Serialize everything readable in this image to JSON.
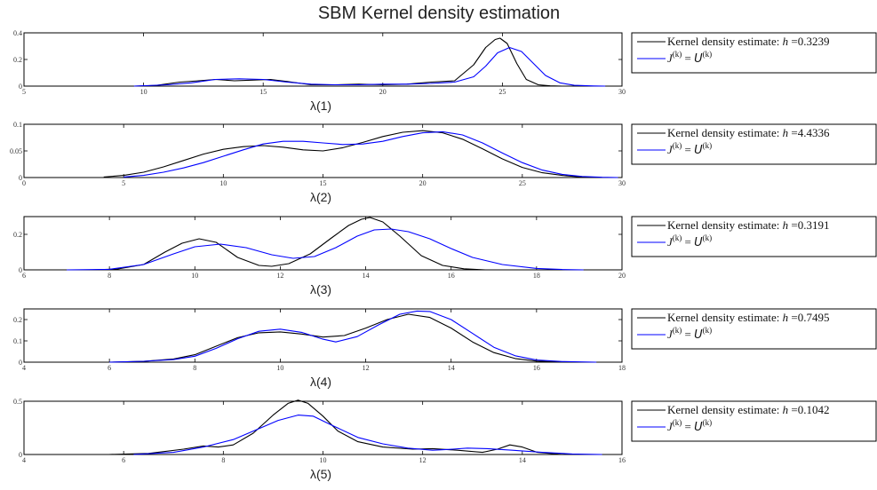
{
  "figure": {
    "title": "SBM Kernel density estimation"
  },
  "legend_labels": {
    "kde_prefix": "Kernel density estimate:",
    "h_symbol": "h",
    "equals": "=",
    "ref_lhs": "J",
    "ref_sup": "(k)",
    "ref_eq": "=",
    "ref_rhs": "U",
    "ref_rhs_sup": "(k)"
  },
  "colors": {
    "kde": "#000000",
    "reference": "#0000ff",
    "axis": "#000000"
  },
  "chart_data": [
    {
      "type": "line",
      "xlabel": "λ(1)",
      "xlim": [
        5,
        30
      ],
      "ylim": [
        0,
        0.4
      ],
      "xticks": [
        5,
        10,
        15,
        20,
        25,
        30
      ],
      "yticks": [
        0,
        0.2,
        0.4
      ],
      "ytick_labels": [
        "0",
        "0.2",
        "0.4"
      ],
      "bandwidth": "0.3239",
      "series": [
        {
          "name": "Kernel density estimate",
          "x": [
            9.6,
            10.5,
            11.5,
            12.3,
            13.0,
            13.8,
            14.5,
            15.3,
            16.0,
            17.0,
            18.0,
            19.0,
            20.0,
            21.0,
            22.0,
            23.0,
            23.8,
            24.3,
            24.7,
            24.9,
            25.2,
            25.6,
            26.0,
            26.5,
            27.0,
            27.5
          ],
          "y": [
            0,
            0.005,
            0.03,
            0.04,
            0.05,
            0.04,
            0.045,
            0.05,
            0.035,
            0.01,
            0.01,
            0.015,
            0.01,
            0.015,
            0.03,
            0.04,
            0.16,
            0.29,
            0.35,
            0.36,
            0.32,
            0.17,
            0.05,
            0.01,
            0.002,
            0
          ]
        },
        {
          "name": "J(k) = U(k)",
          "x": [
            9.6,
            11.0,
            12.0,
            13.0,
            14.0,
            15.0,
            16.0,
            17.0,
            18.0,
            19.0,
            20.0,
            21.0,
            22.0,
            23.0,
            23.8,
            24.3,
            24.8,
            25.3,
            25.8,
            26.3,
            26.8,
            27.4,
            28.0,
            28.8,
            29.3
          ],
          "y": [
            0,
            0.01,
            0.025,
            0.05,
            0.055,
            0.05,
            0.03,
            0.015,
            0.01,
            0.01,
            0.015,
            0.015,
            0.02,
            0.03,
            0.07,
            0.15,
            0.25,
            0.29,
            0.26,
            0.17,
            0.08,
            0.025,
            0.006,
            0.001,
            0
          ]
        }
      ]
    },
    {
      "type": "line",
      "xlabel": "λ(2)",
      "xlim": [
        0,
        30
      ],
      "ylim": [
        0,
        0.1
      ],
      "xticks": [
        0,
        5,
        10,
        15,
        20,
        25,
        30
      ],
      "yticks": [
        0,
        0.05,
        0.1
      ],
      "ytick_labels": [
        "0",
        "0.05",
        "0.1"
      ],
      "bandwidth": "4.4336",
      "series": [
        {
          "name": "Kernel density estimate",
          "x": [
            4,
            5,
            6,
            7,
            8,
            9,
            10,
            11,
            12,
            13,
            14,
            15,
            16,
            17,
            18,
            19,
            20,
            21,
            22,
            23,
            24,
            25,
            26,
            27,
            28,
            29
          ],
          "y": [
            0.001,
            0.004,
            0.01,
            0.02,
            0.032,
            0.044,
            0.053,
            0.058,
            0.06,
            0.057,
            0.052,
            0.05,
            0.056,
            0.066,
            0.077,
            0.085,
            0.088,
            0.084,
            0.072,
            0.054,
            0.035,
            0.019,
            0.009,
            0.004,
            0.001,
            0
          ]
        },
        {
          "name": "J(k) = U(k)",
          "x": [
            5,
            6,
            7,
            8,
            9,
            10,
            11,
            12,
            13,
            14,
            15,
            16,
            17,
            18,
            19,
            20,
            21,
            22,
            23,
            24,
            25,
            26,
            27,
            28,
            29,
            29.8
          ],
          "y": [
            0.001,
            0.004,
            0.01,
            0.018,
            0.028,
            0.04,
            0.052,
            0.063,
            0.068,
            0.068,
            0.065,
            0.062,
            0.063,
            0.068,
            0.077,
            0.084,
            0.086,
            0.08,
            0.065,
            0.046,
            0.028,
            0.014,
            0.006,
            0.002,
            0.0005,
            0
          ]
        }
      ]
    },
    {
      "type": "line",
      "xlabel": "λ(3)",
      "xlim": [
        6,
        20
      ],
      "ylim": [
        0,
        0.3
      ],
      "xticks": [
        6,
        8,
        10,
        12,
        14,
        16,
        18,
        20
      ],
      "yticks": [
        0,
        0.2
      ],
      "ytick_labels": [
        "0",
        "0.2"
      ],
      "bandwidth": "0.3191",
      "series": [
        {
          "name": "Kernel density estimate",
          "x": [
            7.6,
            8.2,
            8.8,
            9.3,
            9.7,
            10.1,
            10.5,
            11.0,
            11.5,
            11.8,
            12.2,
            12.7,
            13.2,
            13.6,
            13.9,
            14.1,
            14.4,
            14.8,
            15.3,
            15.8,
            16.3,
            16.8
          ],
          "y": [
            0,
            0.005,
            0.03,
            0.1,
            0.15,
            0.175,
            0.155,
            0.07,
            0.025,
            0.02,
            0.035,
            0.09,
            0.18,
            0.25,
            0.285,
            0.295,
            0.27,
            0.19,
            0.08,
            0.025,
            0.006,
            0
          ]
        },
        {
          "name": "J(k) = U(k)",
          "x": [
            7.0,
            8.0,
            8.8,
            9.5,
            10.0,
            10.6,
            11.2,
            11.8,
            12.3,
            12.8,
            13.3,
            13.8,
            14.2,
            14.6,
            15.0,
            15.5,
            16.0,
            16.5,
            17.2,
            18.0,
            18.6,
            19.1
          ],
          "y": [
            0,
            0.003,
            0.03,
            0.09,
            0.13,
            0.145,
            0.125,
            0.085,
            0.065,
            0.075,
            0.125,
            0.19,
            0.225,
            0.23,
            0.215,
            0.175,
            0.12,
            0.07,
            0.03,
            0.008,
            0.002,
            0
          ]
        }
      ]
    },
    {
      "type": "line",
      "xlabel": "λ(4)",
      "xlim": [
        4,
        18
      ],
      "ylim": [
        0,
        0.25
      ],
      "xticks": [
        4,
        6,
        8,
        10,
        12,
        14,
        16,
        18
      ],
      "yticks": [
        0,
        0.1,
        0.2
      ],
      "ytick_labels": [
        "0",
        "0.1",
        "0.2"
      ],
      "bandwidth": "0.7495",
      "series": [
        {
          "name": "Kernel density estimate",
          "x": [
            6.0,
            6.8,
            7.5,
            8.0,
            8.5,
            9.0,
            9.5,
            10.0,
            10.5,
            11.0,
            11.5,
            12.0,
            12.5,
            13.0,
            13.5,
            14.0,
            14.5,
            15.0,
            15.5,
            16.0,
            16.8
          ],
          "y": [
            0,
            0.004,
            0.015,
            0.035,
            0.075,
            0.115,
            0.138,
            0.142,
            0.132,
            0.118,
            0.125,
            0.16,
            0.2,
            0.225,
            0.21,
            0.16,
            0.095,
            0.045,
            0.017,
            0.005,
            0
          ]
        },
        {
          "name": "J(k) = U(k)",
          "x": [
            6.0,
            6.8,
            7.5,
            8.0,
            8.5,
            9.0,
            9.5,
            10.0,
            10.5,
            11.0,
            11.3,
            11.8,
            12.3,
            12.8,
            13.2,
            13.5,
            14.0,
            14.5,
            15.0,
            15.5,
            16.0,
            16.6,
            17.4
          ],
          "y": [
            0,
            0.004,
            0.012,
            0.028,
            0.065,
            0.11,
            0.145,
            0.155,
            0.14,
            0.108,
            0.095,
            0.12,
            0.175,
            0.225,
            0.24,
            0.238,
            0.2,
            0.135,
            0.07,
            0.03,
            0.01,
            0.003,
            0
          ]
        }
      ]
    },
    {
      "type": "line",
      "xlabel": "λ(5)",
      "xlim": [
        4,
        16
      ],
      "ylim": [
        0,
        0.5
      ],
      "xticks": [
        4,
        6,
        8,
        10,
        12,
        14,
        16
      ],
      "yticks": [
        0,
        0.5
      ],
      "ytick_labels": [
        "0",
        "0.5"
      ],
      "bandwidth": "0.1042",
      "series": [
        {
          "name": "Kernel density estimate",
          "x": [
            5.7,
            6.5,
            7.2,
            7.6,
            7.9,
            8.2,
            8.6,
            9.0,
            9.3,
            9.5,
            9.7,
            10.0,
            10.3,
            10.7,
            11.2,
            11.8,
            12.2,
            12.7,
            13.2,
            13.5,
            13.75,
            14.0,
            14.3,
            14.8
          ],
          "y": [
            0,
            0.01,
            0.05,
            0.08,
            0.07,
            0.09,
            0.2,
            0.37,
            0.48,
            0.51,
            0.48,
            0.36,
            0.22,
            0.12,
            0.07,
            0.05,
            0.055,
            0.04,
            0.02,
            0.05,
            0.09,
            0.07,
            0.02,
            0
          ]
        },
        {
          "name": "J(k) = U(k)",
          "x": [
            6.2,
            7.0,
            7.6,
            8.2,
            8.7,
            9.1,
            9.5,
            9.8,
            10.2,
            10.7,
            11.2,
            11.7,
            12.2,
            12.6,
            12.9,
            13.3,
            13.8,
            14.4,
            15.0,
            15.6
          ],
          "y": [
            0,
            0.02,
            0.07,
            0.14,
            0.24,
            0.32,
            0.37,
            0.36,
            0.27,
            0.16,
            0.1,
            0.06,
            0.04,
            0.05,
            0.06,
            0.055,
            0.04,
            0.02,
            0.005,
            0
          ]
        }
      ]
    }
  ]
}
